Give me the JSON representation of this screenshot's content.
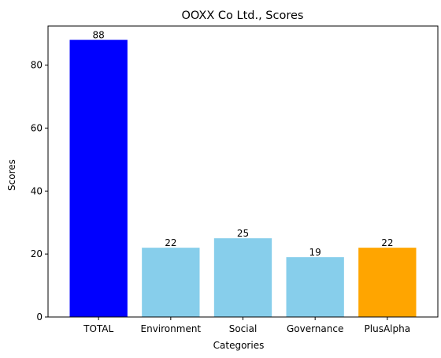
{
  "chart_data": {
    "type": "bar",
    "title": "OOXX Co Ltd., Scores",
    "xlabel": "Categories",
    "ylabel": "Scores",
    "categories": [
      "TOTAL",
      "Environment",
      "Social",
      "Governance",
      "PlusAlpha"
    ],
    "values": [
      88,
      22,
      25,
      19,
      22
    ],
    "colors": [
      "#0000ff",
      "#87ceeb",
      "#87ceeb",
      "#87ceeb",
      "#ffa500"
    ],
    "ylim": [
      0,
      92.4
    ],
    "yticks": [
      0,
      20,
      40,
      60,
      80
    ],
    "grid": false,
    "legend": "none"
  }
}
